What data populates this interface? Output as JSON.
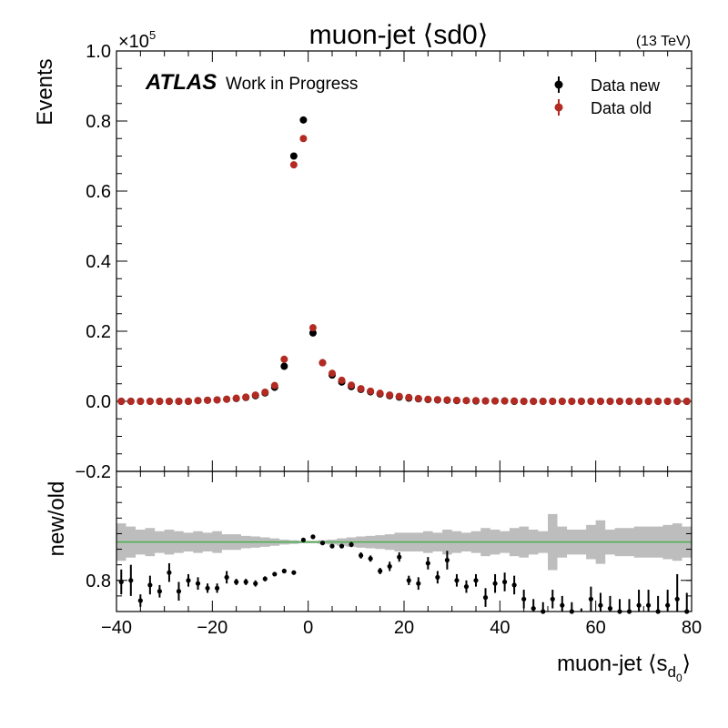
{
  "chart_data": [
    {
      "type": "scatter",
      "title": "muon-jet ⟨sd0⟩",
      "energy_label": "(13 TeV)",
      "experiment_label": "ATLAS",
      "status_label": "Work in Progress",
      "ylabel": "Events",
      "y_multiplier_label": "×10",
      "y_multiplier_exponent": "5",
      "xlim": [
        -40,
        80
      ],
      "ylim": [
        -0.2,
        1.0
      ],
      "y_ticks": [
        "−0.2",
        "0.0",
        "0.2",
        "0.4",
        "0.6",
        "0.8",
        "1.0"
      ],
      "y_tick_values": [
        -0.2,
        0.0,
        0.2,
        0.4,
        0.6,
        0.8,
        1.0
      ],
      "legend_position": "top-right",
      "series": [
        {
          "name": "Data new",
          "color": "#000000",
          "x": [
            -39,
            -37,
            -35,
            -33,
            -31,
            -29,
            -27,
            -25,
            -23,
            -21,
            -19,
            -17,
            -15,
            -13,
            -11,
            -9,
            -7,
            -5,
            -3,
            -1,
            1,
            3,
            5,
            7,
            9,
            11,
            13,
            15,
            17,
            19,
            21,
            23,
            25,
            27,
            29,
            31,
            33,
            35,
            37,
            39,
            41,
            43,
            45,
            47,
            49,
            51,
            53,
            55,
            57,
            59,
            61,
            63,
            65,
            67,
            69,
            71,
            73,
            75,
            77,
            79
          ],
          "y": [
            0.0,
            0.0,
            0.0,
            0.0,
            0.0,
            0.0,
            0.0,
            0.0,
            0.002,
            0.003,
            0.004,
            0.006,
            0.008,
            0.011,
            0.016,
            0.024,
            0.04,
            0.1,
            0.7,
            0.803,
            0.195,
            0.11,
            0.075,
            0.055,
            0.042,
            0.034,
            0.027,
            0.021,
            0.016,
            0.012,
            0.009,
            0.007,
            0.005,
            0.004,
            0.003,
            0.002,
            0.002,
            0.001,
            0.001,
            0.001,
            0.001,
            0.0,
            0.0,
            0.0,
            0.0,
            0.0,
            0.0,
            0.0,
            0.0,
            0.0,
            0.0,
            0.0,
            0.0,
            0.0,
            0.0,
            0.0,
            0.0,
            0.0,
            0.0,
            0.0
          ]
        },
        {
          "name": "Data old",
          "color": "#b22a22",
          "x": [
            -39,
            -37,
            -35,
            -33,
            -31,
            -29,
            -27,
            -25,
            -23,
            -21,
            -19,
            -17,
            -15,
            -13,
            -11,
            -9,
            -7,
            -5,
            -3,
            -1,
            1,
            3,
            5,
            7,
            9,
            11,
            13,
            15,
            17,
            19,
            21,
            23,
            25,
            27,
            29,
            31,
            33,
            35,
            37,
            39,
            41,
            43,
            45,
            47,
            49,
            51,
            53,
            55,
            57,
            59,
            61,
            63,
            65,
            67,
            69,
            71,
            73,
            75,
            77,
            79
          ],
          "y": [
            0.0,
            0.0,
            0.0,
            0.0,
            0.0,
            0.0,
            0.0,
            0.0,
            0.002,
            0.003,
            0.004,
            0.006,
            0.009,
            0.012,
            0.018,
            0.026,
            0.045,
            0.12,
            0.675,
            0.75,
            0.21,
            0.11,
            0.08,
            0.06,
            0.046,
            0.036,
            0.029,
            0.023,
            0.018,
            0.014,
            0.011,
            0.008,
            0.006,
            0.005,
            0.004,
            0.003,
            0.002,
            0.002,
            0.001,
            0.001,
            0.001,
            0.001,
            0.0,
            0.0,
            0.0,
            0.0,
            0.0,
            0.0,
            0.0,
            0.0,
            0.0,
            0.0,
            0.0,
            0.0,
            0.0,
            0.0,
            0.0,
            0.0,
            0.0,
            0.0
          ]
        }
      ]
    },
    {
      "type": "scatter",
      "ylabel": "new/old",
      "xlabel_prefix": "muon-jet ⟨s",
      "xlabel_sub": "d",
      "xlabel_subsub": "0",
      "xlabel_suffix": "⟩",
      "xlim": [
        -40,
        80
      ],
      "ylim": [
        0.7,
        1.15
      ],
      "x_ticks": [
        "−40",
        "−20",
        "0",
        "20",
        "40",
        "60",
        "80"
      ],
      "x_tick_values": [
        -40,
        -20,
        0,
        20,
        40,
        60,
        80
      ],
      "y_ticks": [
        "0.8"
      ],
      "y_tick_values": [
        0.8
      ],
      "reference_line": {
        "y": 0.923,
        "color": "#4caf50"
      },
      "band": {
        "color": "#bdbdbd",
        "x": [
          -40,
          -38,
          -36,
          -34,
          -32,
          -30,
          -28,
          -26,
          -24,
          -22,
          -20,
          -18,
          -16,
          -14,
          -12,
          -10,
          -8,
          -6,
          -4,
          -2,
          0,
          2,
          4,
          6,
          8,
          10,
          12,
          14,
          16,
          18,
          20,
          22,
          24,
          26,
          28,
          30,
          32,
          34,
          36,
          38,
          40,
          42,
          44,
          46,
          48,
          50,
          52,
          54,
          56,
          58,
          60,
          62,
          64,
          66,
          68,
          70,
          72,
          74,
          76,
          78,
          80
        ],
        "half_width": [
          0.06,
          0.05,
          0.04,
          0.045,
          0.035,
          0.04,
          0.035,
          0.03,
          0.035,
          0.03,
          0.035,
          0.025,
          0.025,
          0.02,
          0.018,
          0.015,
          0.012,
          0.008,
          0.006,
          0.004,
          0.004,
          0.006,
          0.008,
          0.012,
          0.015,
          0.018,
          0.02,
          0.022,
          0.025,
          0.03,
          0.03,
          0.03,
          0.035,
          0.03,
          0.04,
          0.035,
          0.03,
          0.035,
          0.045,
          0.04,
          0.035,
          0.045,
          0.05,
          0.04,
          0.035,
          0.09,
          0.05,
          0.04,
          0.04,
          0.055,
          0.07,
          0.04,
          0.045,
          0.045,
          0.05,
          0.05,
          0.05,
          0.055,
          0.06,
          0.05
        ]
      },
      "series": [
        {
          "name": "ratio",
          "color": "#000000",
          "x": [
            -39,
            -37,
            -35,
            -33,
            -31,
            -29,
            -27,
            -25,
            -23,
            -21,
            -19,
            -17,
            -15,
            -13,
            -11,
            -9,
            -7,
            -5,
            -3,
            -1,
            1,
            3,
            5,
            7,
            9,
            11,
            13,
            15,
            17,
            19,
            21,
            23,
            25,
            27,
            29,
            31,
            33,
            35,
            37,
            39,
            41,
            43,
            45,
            47,
            49,
            51,
            53,
            55,
            57,
            59,
            61,
            63,
            65,
            67,
            69,
            71,
            73,
            75,
            77,
            79
          ],
          "y": [
            0.795,
            0.8,
            0.735,
            0.785,
            0.765,
            0.825,
            0.765,
            0.8,
            0.79,
            0.775,
            0.775,
            0.81,
            0.795,
            0.795,
            0.79,
            0.805,
            0.82,
            0.83,
            0.825,
            0.93,
            0.94,
            0.92,
            0.91,
            0.91,
            0.915,
            0.88,
            0.87,
            0.83,
            0.845,
            0.875,
            0.8,
            0.79,
            0.855,
            0.81,
            0.865,
            0.8,
            0.78,
            0.8,
            0.745,
            0.79,
            0.795,
            0.785,
            0.74,
            0.71,
            0.7,
            0.74,
            0.72,
            0.7,
            0.68,
            0.74,
            0.72,
            0.71,
            0.7,
            0.7,
            0.72,
            0.72,
            0.7,
            0.72,
            0.74,
            0.7
          ],
          "err": [
            0.04,
            0.05,
            0.02,
            0.03,
            0.02,
            0.03,
            0.03,
            0.02,
            0.02,
            0.015,
            0.015,
            0.02,
            0.01,
            0.01,
            0.01,
            0.008,
            0.006,
            0.004,
            0.002,
            0.001,
            0.001,
            0.002,
            0.004,
            0.006,
            0.008,
            0.01,
            0.01,
            0.01,
            0.015,
            0.015,
            0.015,
            0.02,
            0.02,
            0.02,
            0.03,
            0.02,
            0.02,
            0.02,
            0.03,
            0.03,
            0.03,
            0.03,
            0.03,
            0.03,
            0.03,
            0.03,
            0.03,
            0.03,
            0.03,
            0.04,
            0.04,
            0.04,
            0.04,
            0.04,
            0.05,
            0.05,
            0.05,
            0.05,
            0.08,
            0.06
          ]
        }
      ]
    }
  ]
}
